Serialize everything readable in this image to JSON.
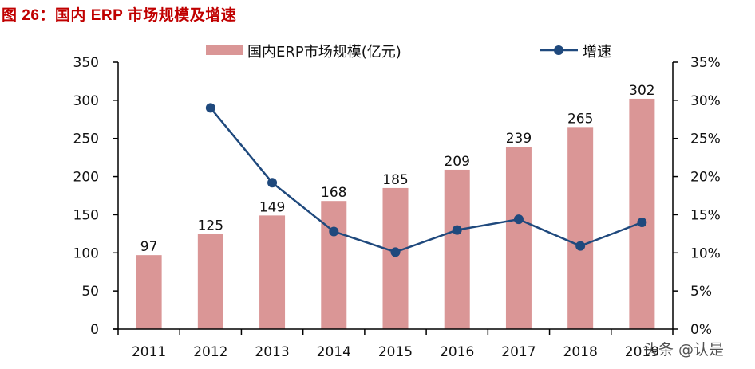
{
  "title": "图 26：国内 ERP 市场规模及增速",
  "watermark": "头条 @认是",
  "colors": {
    "bar": "#da9696",
    "line": "#1f497d",
    "title": "#c00000",
    "axis": "#000000"
  },
  "chart_data": {
    "type": "bar+line",
    "title": "图 26：国内 ERP 市场规模及增速",
    "categories": [
      "2011",
      "2012",
      "2013",
      "2014",
      "2015",
      "2016",
      "2017",
      "2018",
      "2019"
    ],
    "series": [
      {
        "name": "国内ERP市场规模(亿元)",
        "type": "bar",
        "axis": "left",
        "values": [
          97,
          125,
          149,
          168,
          185,
          209,
          239,
          265,
          302
        ]
      },
      {
        "name": "增速",
        "type": "line",
        "axis": "right",
        "values": [
          null,
          0.29,
          0.192,
          0.128,
          0.101,
          0.13,
          0.144,
          0.109,
          0.14
        ]
      }
    ],
    "left_axis": {
      "ylim": [
        0,
        350
      ],
      "ticks": [
        "0",
        "50",
        "100",
        "150",
        "200",
        "250",
        "300",
        "350"
      ]
    },
    "right_axis": {
      "ylim": [
        0,
        0.35
      ],
      "ticks": [
        "0%",
        "5%",
        "10%",
        "15%",
        "20%",
        "25%",
        "30%",
        "35%"
      ]
    },
    "legend": {
      "position": "top",
      "entries": [
        "国内ERP市场规模(亿元)",
        "增速"
      ]
    },
    "grid": false,
    "xlabel": "",
    "ylabel": ""
  }
}
